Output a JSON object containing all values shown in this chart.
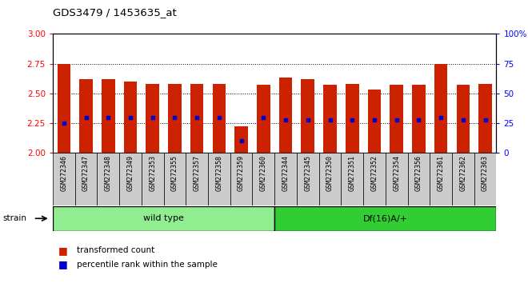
{
  "title": "GDS3479 / 1453635_at",
  "samples": [
    "GSM272346",
    "GSM272347",
    "GSM272348",
    "GSM272349",
    "GSM272353",
    "GSM272355",
    "GSM272357",
    "GSM272358",
    "GSM272359",
    "GSM272360",
    "GSM272344",
    "GSM272345",
    "GSM272350",
    "GSM272351",
    "GSM272352",
    "GSM272354",
    "GSM272356",
    "GSM272361",
    "GSM272362",
    "GSM272363"
  ],
  "transformed_count": [
    2.75,
    2.62,
    2.62,
    2.6,
    2.58,
    2.58,
    2.58,
    2.58,
    2.22,
    2.57,
    2.63,
    2.62,
    2.57,
    2.58,
    2.53,
    2.57,
    2.57,
    2.75,
    2.57,
    2.58
  ],
  "percentile_rank": [
    25,
    30,
    30,
    30,
    30,
    30,
    30,
    30,
    10,
    30,
    28,
    28,
    28,
    28,
    28,
    28,
    28,
    30,
    28,
    28
  ],
  "groups": [
    {
      "name": "wild type",
      "start": 0,
      "end": 10,
      "color": "#90EE90"
    },
    {
      "name": "Df(16)A/+",
      "start": 10,
      "end": 20,
      "color": "#32CD32"
    }
  ],
  "ylim_left": [
    2.0,
    3.0
  ],
  "ylim_right": [
    0,
    100
  ],
  "yticks_left": [
    2.0,
    2.25,
    2.5,
    2.75,
    3.0
  ],
  "yticks_right": [
    0,
    25,
    50,
    75,
    100
  ],
  "bar_color": "#CC2200",
  "dot_color": "#0000CC",
  "tick_bg_color": "#CCCCCC",
  "legend_items": [
    "transformed count",
    "percentile rank within the sample"
  ]
}
